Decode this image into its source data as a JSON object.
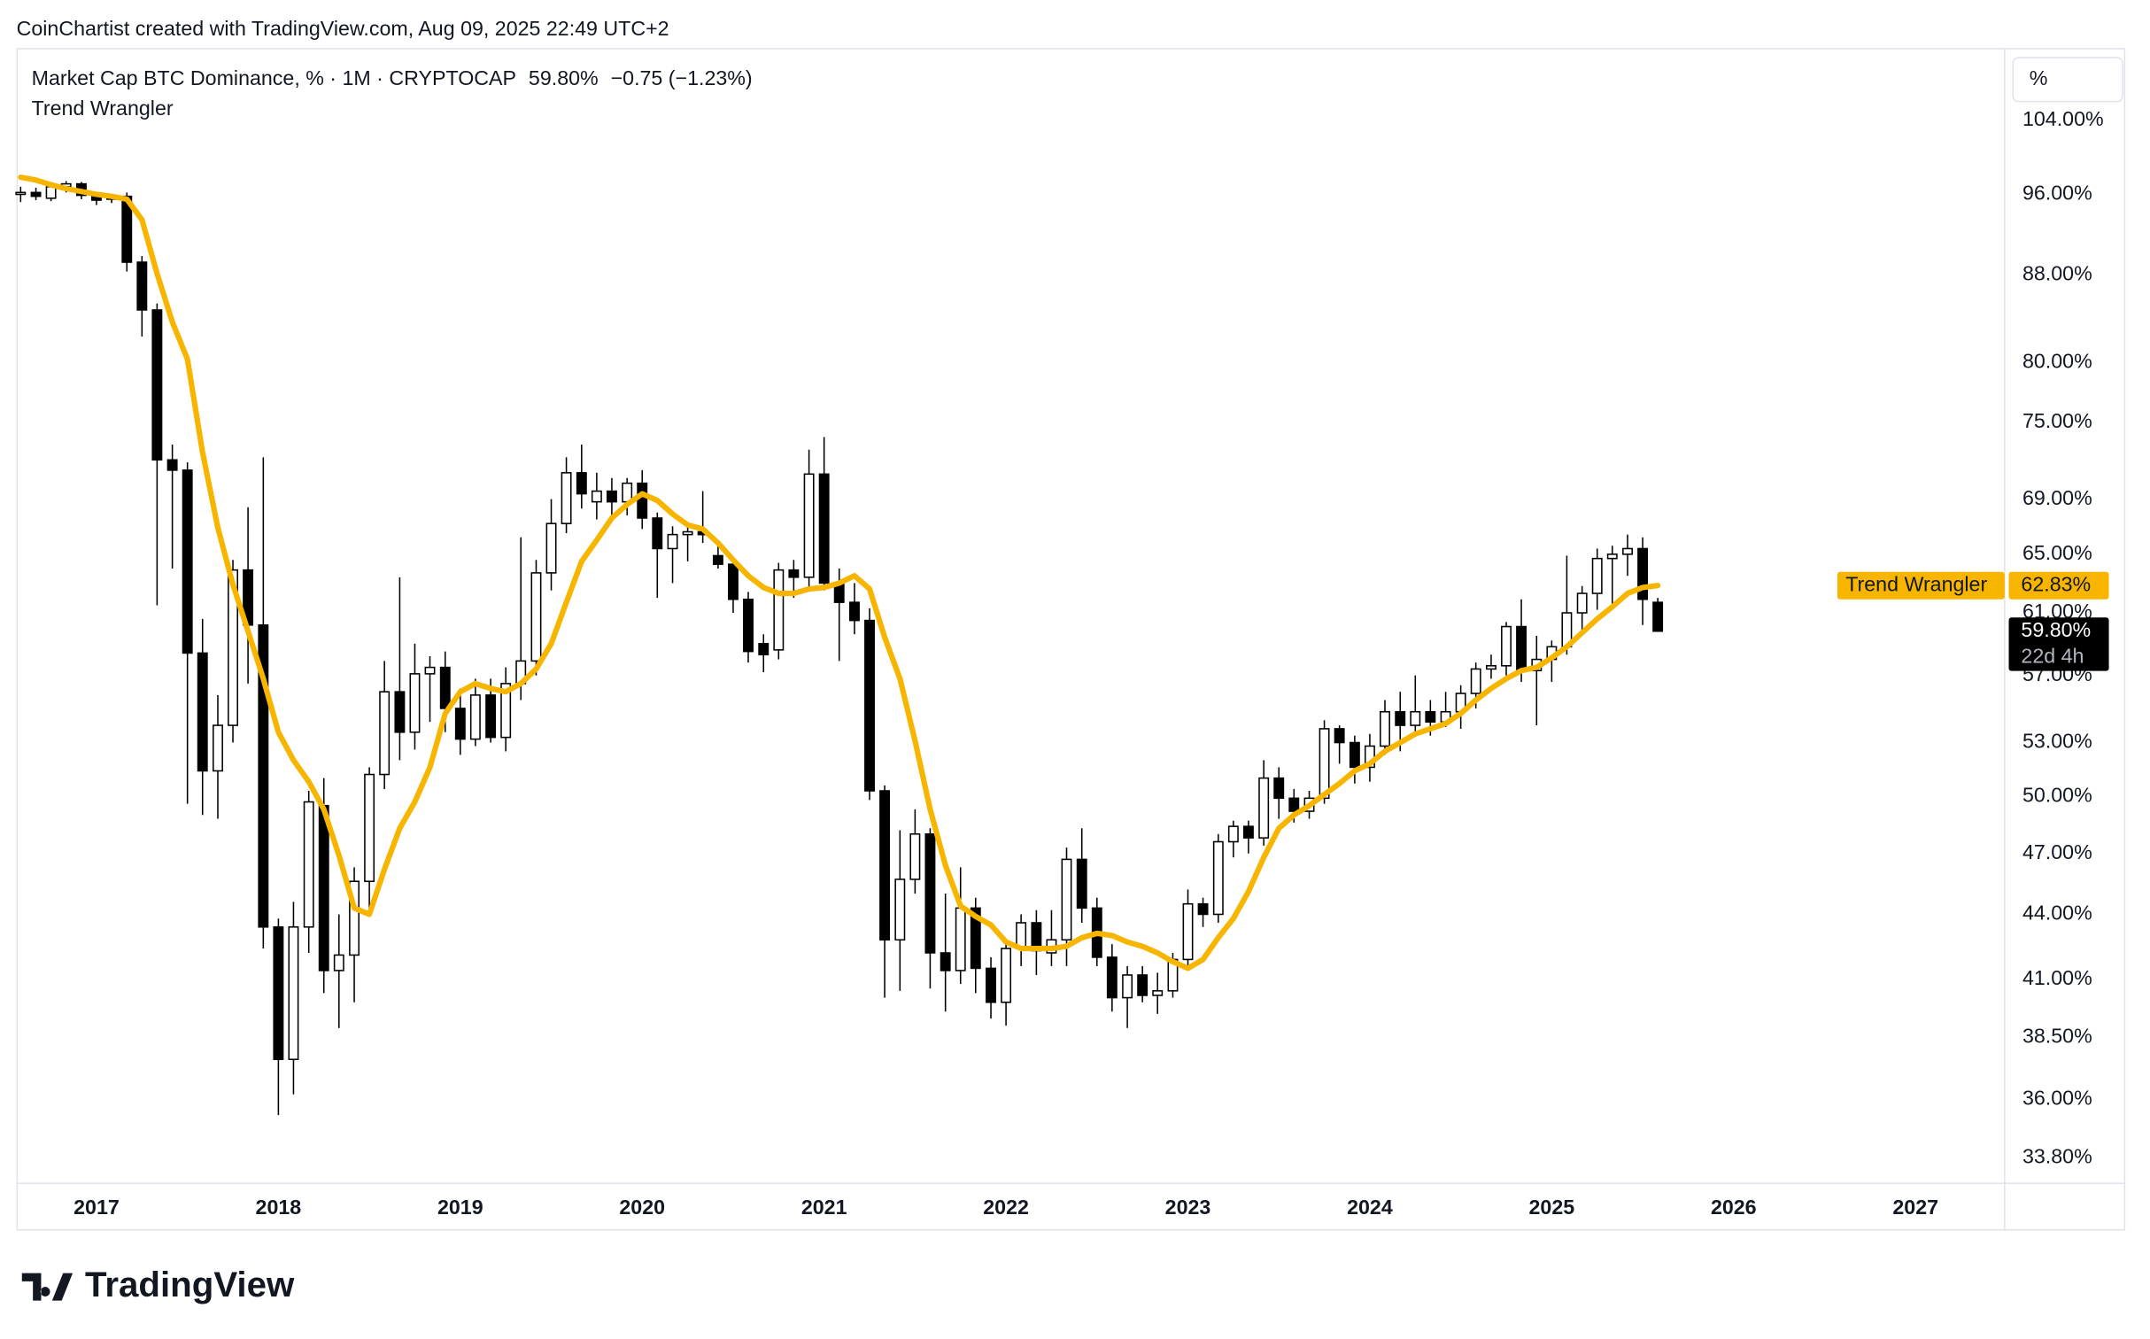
{
  "created_by": "CoinChartist created with TradingView.com, Aug 09, 2025 22:49 UTC+2",
  "logo": "TradingView",
  "unit_button": "%",
  "chart_data": {
    "type": "candlestick",
    "title": "Market Cap BTC Dominance, % · 1M · CRYPTOCAP",
    "last_close_label": "59.80%",
    "change_label": "−0.75 (−1.23%)",
    "countdown": "22d 4h",
    "up_color": "#ffffff",
    "down_color": "#000000",
    "log": true,
    "grid": false,
    "xlim": [
      2016.56,
      2027.49
    ],
    "xticks": [
      2017,
      2018,
      2019,
      2020,
      2021,
      2022,
      2023,
      2024,
      2025,
      2026,
      2027
    ],
    "ylim": [
      32.9,
      112.5
    ],
    "yticks": [
      {
        "value": 104,
        "label": "104.00%"
      },
      {
        "value": 96,
        "label": "96.00%"
      },
      {
        "value": 88,
        "label": "88.00%"
      },
      {
        "value": 80,
        "label": "80.00%"
      },
      {
        "value": 75,
        "label": "75.00%"
      },
      {
        "value": 69,
        "label": "69.00%"
      },
      {
        "value": 65,
        "label": "65.00%"
      },
      {
        "value": 61,
        "label": "61.00%"
      },
      {
        "value": 57,
        "label": "57.00%"
      },
      {
        "value": 53,
        "label": "53.00%"
      },
      {
        "value": 50,
        "label": "50.00%"
      },
      {
        "value": 47,
        "label": "47.00%"
      },
      {
        "value": 44,
        "label": "44.00%"
      },
      {
        "value": 41,
        "label": "41.00%"
      },
      {
        "value": 38.5,
        "label": "38.50%"
      },
      {
        "value": 36,
        "label": "36.00%"
      },
      {
        "value": 33.8,
        "label": "33.80%"
      }
    ],
    "x": [
      2016.583,
      2016.667,
      2016.75,
      2016.833,
      2016.917,
      2017.0,
      2017.083,
      2017.167,
      2017.25,
      2017.333,
      2017.417,
      2017.5,
      2017.583,
      2017.667,
      2017.75,
      2017.833,
      2017.917,
      2018.0,
      2018.083,
      2018.167,
      2018.25,
      2018.333,
      2018.417,
      2018.5,
      2018.583,
      2018.667,
      2018.75,
      2018.833,
      2018.917,
      2019.0,
      2019.083,
      2019.167,
      2019.25,
      2019.333,
      2019.417,
      2019.5,
      2019.583,
      2019.667,
      2019.75,
      2019.833,
      2019.917,
      2020.0,
      2020.083,
      2020.167,
      2020.25,
      2020.333,
      2020.417,
      2020.5,
      2020.583,
      2020.667,
      2020.75,
      2020.833,
      2020.917,
      2021.0,
      2021.083,
      2021.167,
      2021.25,
      2021.333,
      2021.417,
      2021.5,
      2021.583,
      2021.667,
      2021.75,
      2021.833,
      2021.917,
      2022.0,
      2022.083,
      2022.167,
      2022.25,
      2022.333,
      2022.417,
      2022.5,
      2022.583,
      2022.667,
      2022.75,
      2022.833,
      2022.917,
      2023.0,
      2023.083,
      2023.167,
      2023.25,
      2023.333,
      2023.417,
      2023.5,
      2023.583,
      2023.667,
      2023.75,
      2023.833,
      2023.917,
      2024.0,
      2024.083,
      2024.167,
      2024.25,
      2024.333,
      2024.417,
      2024.5,
      2024.583,
      2024.667,
      2024.75,
      2024.833,
      2024.917,
      2025.0,
      2025.083,
      2025.167,
      2025.25,
      2025.333,
      2025.417,
      2025.5,
      2025.583
    ],
    "open": [
      96.0,
      96.2,
      95.6,
      96.8,
      97.1,
      95.9,
      95.5,
      95.8,
      89.2,
      84.7,
      72.0,
      71.2,
      58.4,
      51.4,
      54.0,
      63.9,
      60.2,
      43.4,
      37.6,
      43.4,
      49.5,
      41.4,
      42.1,
      45.6,
      51.2,
      56.0,
      53.6,
      57.1,
      57.5,
      55.0,
      53.2,
      55.8,
      53.3,
      56.5,
      57.9,
      63.7,
      67.2,
      71.0,
      68.8,
      69.6,
      68.8,
      70.2,
      67.6,
      65.4,
      66.4,
      66.6,
      64.9,
      64.3,
      61.9,
      59.0,
      58.6,
      63.9,
      63.4,
      70.9,
      63.0,
      61.7,
      60.5,
      50.3,
      42.8,
      45.7,
      48.0,
      42.2,
      41.4,
      44.3,
      41.5,
      40.0,
      42.4,
      43.6,
      42.2,
      42.8,
      46.7,
      44.3,
      42.0,
      40.2,
      41.2,
      40.3,
      40.5,
      41.9,
      44.5,
      44.0,
      47.6,
      48.4,
      47.8,
      51.0,
      49.9,
      49.2,
      49.9,
      53.8,
      53.0,
      51.6,
      52.8,
      54.8,
      54.0,
      54.8,
      54.2,
      54.8,
      55.9,
      57.4,
      57.6,
      60.1,
      57.3,
      58.0,
      58.8,
      61.0,
      62.3,
      64.7,
      65.0,
      65.4,
      61.7
    ],
    "high": [
      96.8,
      96.7,
      97.3,
      97.4,
      97.3,
      96.2,
      96.0,
      96.2,
      89.8,
      85.3,
      73.2,
      71.8,
      60.6,
      55.8,
      64.6,
      68.4,
      72.2,
      43.8,
      44.6,
      50.3,
      51.0,
      44.0,
      46.3,
      51.6,
      57.9,
      63.4,
      59.0,
      58.2,
      58.5,
      56.2,
      56.8,
      56.8,
      57.5,
      66.2,
      64.6,
      69.0,
      72.2,
      73.2,
      71.0,
      70.6,
      70.6,
      71.2,
      68.0,
      67.0,
      67.3,
      69.6,
      65.6,
      64.8,
      62.4,
      59.6,
      64.4,
      64.6,
      72.8,
      73.8,
      64.0,
      63.0,
      61.3,
      50.6,
      48.2,
      49.3,
      48.3,
      45.0,
      46.3,
      44.8,
      42.0,
      42.8,
      44.0,
      44.2,
      44.2,
      47.3,
      48.3,
      44.8,
      42.6,
      41.6,
      41.6,
      41.3,
      42.2,
      45.2,
      44.8,
      48.0,
      48.7,
      48.7,
      52.0,
      51.6,
      50.4,
      50.3,
      54.3,
      54.0,
      53.4,
      53.5,
      55.5,
      56.0,
      57.0,
      55.5,
      56.0,
      56.4,
      57.8,
      58.3,
      60.4,
      61.9,
      59.5,
      59.2,
      64.9,
      62.8,
      65.4,
      65.6,
      66.4,
      66.2,
      62.0
    ],
    "low": [
      95.2,
      95.4,
      95.3,
      96.2,
      95.5,
      94.9,
      95.1,
      88.3,
      82.3,
      61.5,
      64.0,
      49.6,
      49.0,
      48.8,
      53.0,
      56.5,
      42.4,
      35.4,
      36.2,
      42.2,
      40.4,
      38.9,
      40.0,
      44.0,
      50.4,
      52.0,
      52.6,
      54.2,
      53.6,
      52.3,
      52.8,
      53.0,
      52.5,
      55.5,
      57.0,
      62.5,
      66.5,
      68.3,
      67.5,
      67.8,
      67.8,
      66.8,
      62.0,
      63.0,
      64.5,
      65.8,
      64.0,
      61.0,
      57.8,
      57.2,
      58.0,
      62.0,
      62.5,
      62.5,
      57.9,
      59.6,
      49.8,
      40.2,
      40.5,
      45.0,
      40.6,
      39.6,
      40.8,
      40.4,
      39.3,
      39.0,
      41.6,
      41.2,
      41.6,
      41.6,
      43.6,
      41.6,
      39.6,
      38.9,
      40.0,
      39.5,
      40.2,
      41.5,
      43.4,
      43.6,
      46.8,
      47.0,
      47.4,
      48.8,
      48.6,
      48.8,
      49.6,
      51.8,
      50.7,
      50.8,
      52.3,
      52.5,
      53.4,
      53.4,
      53.9,
      53.8,
      55.0,
      56.8,
      57.0,
      56.6,
      54.0,
      56.6,
      58.3,
      59.5,
      61.2,
      61.6,
      63.5,
      60.2,
      59.8
    ],
    "close": [
      96.2,
      95.8,
      96.8,
      97.1,
      95.9,
      95.4,
      95.8,
      89.2,
      84.7,
      72.0,
      71.2,
      58.4,
      51.4,
      54.0,
      63.9,
      60.2,
      43.4,
      37.6,
      43.4,
      49.7,
      41.4,
      42.1,
      45.6,
      51.2,
      56.0,
      53.6,
      57.1,
      57.5,
      55.0,
      53.2,
      55.8,
      53.3,
      56.5,
      57.9,
      63.7,
      67.2,
      71.0,
      69.4,
      69.6,
      68.8,
      70.2,
      67.6,
      65.4,
      66.4,
      66.6,
      66.4,
      64.3,
      61.9,
      58.5,
      58.3,
      63.9,
      63.4,
      70.9,
      63.0,
      61.7,
      60.5,
      50.3,
      42.8,
      45.7,
      48.0,
      42.2,
      41.4,
      44.3,
      41.5,
      40.0,
      42.4,
      43.6,
      42.3,
      42.8,
      46.7,
      44.3,
      42.0,
      40.2,
      41.2,
      40.3,
      40.5,
      41.9,
      44.5,
      44.0,
      47.6,
      48.4,
      47.8,
      51.0,
      49.9,
      49.2,
      49.9,
      53.8,
      53.0,
      51.6,
      52.8,
      54.8,
      54.0,
      54.8,
      54.2,
      54.8,
      55.9,
      57.4,
      57.6,
      60.1,
      57.3,
      58.0,
      58.8,
      61.0,
      62.3,
      64.7,
      65.0,
      65.4,
      61.9,
      59.8
    ],
    "overlay": {
      "name": "Trend Wrangler",
      "color": "#f7b500",
      "value_label": "62.83%",
      "values": [
        97.8,
        97.5,
        97.0,
        96.6,
        96.3,
        96.0,
        95.8,
        95.5,
        93.4,
        88.1,
        83.6,
        80.3,
        72.6,
        66.9,
        62.9,
        59.8,
        56.8,
        53.6,
        52.0,
        50.8,
        49.3,
        46.9,
        44.3,
        44.0,
        46.2,
        48.3,
        49.7,
        51.6,
        54.7,
        56.0,
        56.5,
        56.2,
        56.0,
        56.5,
        57.4,
        59.0,
        61.7,
        64.5,
        66.0,
        67.6,
        68.6,
        69.4,
        68.9,
        67.9,
        67.1,
        66.8,
        65.8,
        64.6,
        63.5,
        62.7,
        62.3,
        62.3,
        62.6,
        62.7,
        63.0,
        63.5,
        62.6,
        59.4,
        56.8,
        53.1,
        49.3,
        46.4,
        44.4,
        43.9,
        43.5,
        42.7,
        42.4,
        42.4,
        42.4,
        42.5,
        42.9,
        43.1,
        43.0,
        42.7,
        42.5,
        42.2,
        41.8,
        41.5,
        41.9,
        42.9,
        43.8,
        45.1,
        46.8,
        48.3,
        49.0,
        49.5,
        50.1,
        50.7,
        51.4,
        51.8,
        52.5,
        53.0,
        53.5,
        53.8,
        54.1,
        54.7,
        55.5,
        56.2,
        56.8,
        57.3,
        57.5,
        58.1,
        58.8,
        59.7,
        60.6,
        61.4,
        62.3,
        62.7,
        62.83
      ]
    }
  }
}
